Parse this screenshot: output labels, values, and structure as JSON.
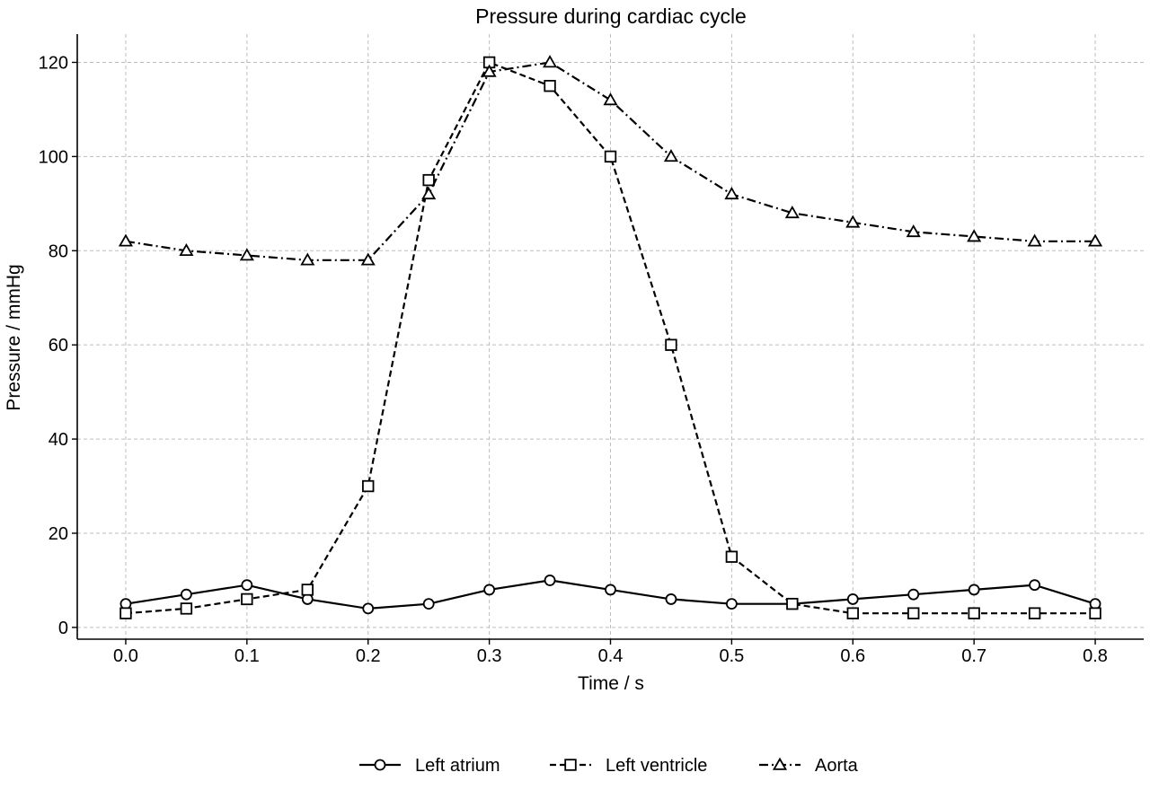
{
  "chart_data": {
    "type": "line",
    "title": "Pressure during cardiac cycle",
    "xlabel": "Time / s",
    "ylabel": "Pressure / mmHg",
    "xlim": [
      -0.04,
      0.84
    ],
    "ylim": [
      -2.5,
      126
    ],
    "xticks": [
      0.0,
      0.1,
      0.2,
      0.3,
      0.4,
      0.5,
      0.6,
      0.7,
      0.8
    ],
    "xtick_labels": [
      "0.0",
      "0.1",
      "0.2",
      "0.3",
      "0.4",
      "0.5",
      "0.6",
      "0.7",
      "0.8"
    ],
    "yticks": [
      0,
      20,
      40,
      60,
      80,
      100,
      120
    ],
    "ytick_labels": [
      "0",
      "20",
      "40",
      "60",
      "80",
      "100",
      "120"
    ],
    "grid": true,
    "legend_position": "bottom-center",
    "x": [
      0.0,
      0.05,
      0.1,
      0.15,
      0.2,
      0.25,
      0.3,
      0.35,
      0.4,
      0.45,
      0.5,
      0.55,
      0.6,
      0.65,
      0.7,
      0.75,
      0.8
    ],
    "series": [
      {
        "name": "Left atrium",
        "line_style": "solid",
        "marker": "circle",
        "color": "#000000",
        "values": [
          5,
          7,
          9,
          6,
          4,
          5,
          8,
          10,
          8,
          6,
          5,
          5,
          6,
          7,
          8,
          9,
          5
        ]
      },
      {
        "name": "Left ventricle",
        "line_style": "dashed",
        "marker": "square",
        "color": "#000000",
        "values": [
          3,
          4,
          6,
          8,
          30,
          95,
          120,
          115,
          100,
          60,
          15,
          5,
          3,
          3,
          3,
          3,
          3
        ]
      },
      {
        "name": "Aorta",
        "line_style": "dashdot",
        "marker": "triangle",
        "color": "#000000",
        "values": [
          82,
          80,
          79,
          78,
          78,
          92,
          118,
          120,
          112,
          100,
          92,
          88,
          86,
          84,
          83,
          82,
          82
        ]
      }
    ]
  }
}
